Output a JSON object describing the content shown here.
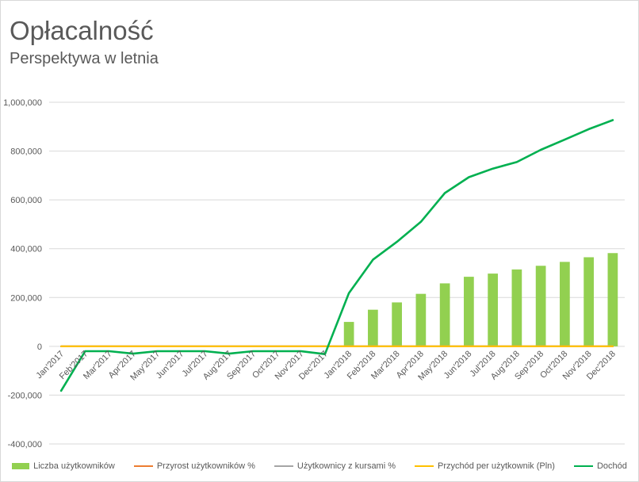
{
  "chart_data": {
    "type": "bar+line",
    "title": "Opłacalność",
    "subtitle": "Perspektywa w letnia",
    "ylim": [
      -400000,
      1000000
    ],
    "yticks": [
      -400000,
      -200000,
      0,
      200000,
      400000,
      600000,
      800000,
      1000000
    ],
    "ytick_labels": [
      "-400,000",
      "-200,000",
      "0",
      "200,000",
      "400,000",
      "600,000",
      "800,000",
      "1,000,000"
    ],
    "grid": true,
    "legend_position": "bottom",
    "categories": [
      "Jan'2017",
      "Feb'2017",
      "Mar'2017",
      "Apr'2017",
      "May'2017",
      "Jun'2017",
      "Jul'2017",
      "Aug'2017",
      "Sep'2017",
      "Oct'2017",
      "Nov'2017",
      "Dec'2017",
      "Jan'2018",
      "Feb'2018",
      "Mar'2018",
      "Apr'2018",
      "May'2018",
      "Jun'2018",
      "Jul'2018",
      "Aug'2018",
      "Sep'2018",
      "Oct'2018",
      "Nov'2018",
      "Dec'2018"
    ],
    "series": [
      {
        "name": "Liczba użytkowników",
        "kind": "bar",
        "color": "#92d050",
        "values": [
          0,
          0,
          0,
          0,
          0,
          0,
          0,
          0,
          0,
          0,
          0,
          0,
          100000,
          150000,
          180000,
          215000,
          258000,
          285000,
          298000,
          315000,
          330000,
          346000,
          365000,
          382000
        ]
      },
      {
        "name": "Przyrost użytkowników %",
        "kind": "line",
        "color": "#ed7d31",
        "values": [
          0,
          0,
          0,
          0,
          0,
          0,
          0,
          0,
          0,
          0,
          0,
          0,
          0,
          0,
          0,
          0,
          0,
          0,
          0,
          0,
          0,
          0,
          0,
          0
        ]
      },
      {
        "name": "Użytkownicy z kursami %",
        "kind": "line",
        "color": "#a5a5a5",
        "values": [
          0,
          0,
          0,
          0,
          0,
          0,
          0,
          0,
          0,
          0,
          0,
          0,
          0,
          0,
          0,
          0,
          0,
          0,
          0,
          0,
          0,
          0,
          0,
          0
        ]
      },
      {
        "name": "Przychód per użytkownik (Pln)",
        "kind": "line",
        "color": "#ffc000",
        "values": [
          0,
          0,
          0,
          0,
          0,
          0,
          0,
          0,
          0,
          0,
          0,
          0,
          0,
          0,
          0,
          0,
          0,
          0,
          0,
          0,
          0,
          0,
          0,
          0
        ]
      },
      {
        "name": "Dochód",
        "kind": "line",
        "color": "#00b050",
        "values": [
          -182000,
          -20000,
          -20000,
          -30000,
          -20000,
          -20000,
          -20000,
          -30000,
          -20000,
          -20000,
          -20000,
          -32000,
          218000,
          355000,
          428000,
          510000,
          628000,
          693000,
          728000,
          755000,
          805000,
          847000,
          890000,
          927000
        ]
      }
    ]
  }
}
